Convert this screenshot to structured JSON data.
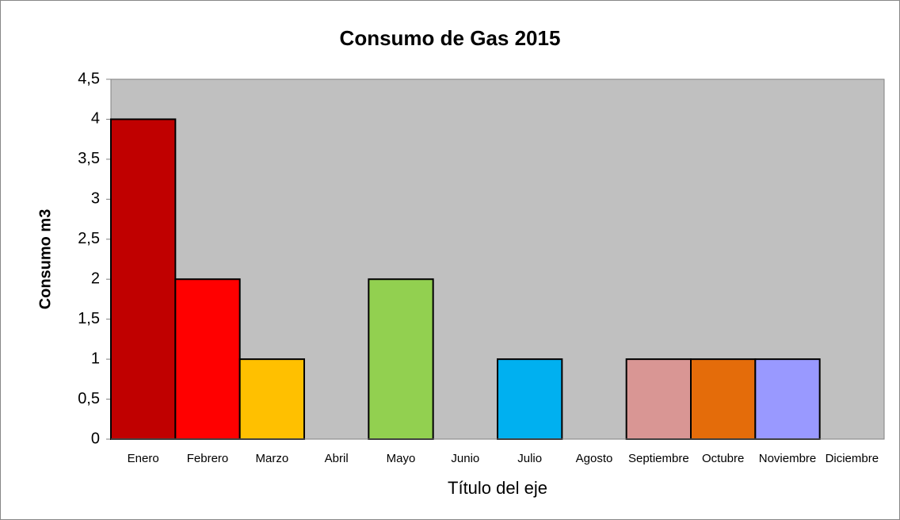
{
  "chart_data": {
    "type": "bar",
    "title": "Consumo de Gas 2015",
    "y_label": "Consumo m3",
    "x_label": "Título del eje",
    "categories": [
      "Enero",
      "Febrero",
      "Marzo",
      "Abril",
      "Mayo",
      "Junio",
      "Julio",
      "Agosto",
      "Septiembre",
      "Octubre",
      "Noviembre",
      "Diciembre"
    ],
    "values": [
      4,
      2,
      1,
      0,
      2,
      0,
      1,
      0,
      1,
      1,
      1,
      0
    ],
    "colors": [
      "#c00000",
      "#ff0000",
      "#ffc000",
      null,
      "#92d050",
      null,
      "#00b0f0",
      null,
      "#d99694",
      "#e46c0a",
      "#9999ff",
      null
    ],
    "ylim": [
      0,
      4.5
    ],
    "yticks": [
      0,
      {
        "value": 0.5,
        "label": "0,5"
      },
      1,
      {
        "value": 1.5,
        "label": "1,5"
      },
      2,
      {
        "value": 2.5,
        "label": "2,5"
      },
      3,
      {
        "value": 3.5,
        "label": "3,5"
      },
      4,
      {
        "value": 4.5,
        "label": "4,5"
      }
    ],
    "grid": false
  }
}
